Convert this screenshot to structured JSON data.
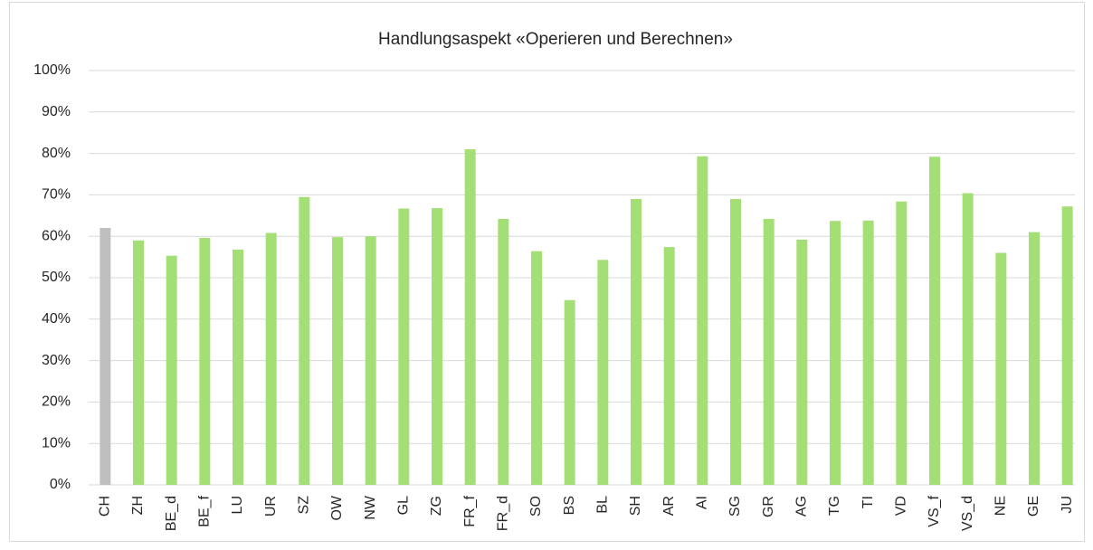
{
  "chart_data": {
    "type": "bar",
    "title": "Handlungsaspekt «Operieren und Berechnen»",
    "categories": [
      "CH",
      "ZH",
      "BE_d",
      "BE_f",
      "LU",
      "UR",
      "SZ",
      "OW",
      "NW",
      "GL",
      "ZG",
      "FR_f",
      "FR_d",
      "SO",
      "BS",
      "BL",
      "SH",
      "AR",
      "AI",
      "SG",
      "GR",
      "AG",
      "TG",
      "TI",
      "VD",
      "VS_f",
      "VS_d",
      "NE",
      "GE",
      "JU"
    ],
    "values": [
      62,
      59,
      55.3,
      59.6,
      56.8,
      60.8,
      69.5,
      59.8,
      60,
      66.7,
      66.8,
      81,
      64.2,
      56.4,
      44.6,
      54.3,
      69,
      57.4,
      79.3,
      69,
      64.2,
      59.2,
      63.7,
      63.8,
      68.4,
      79.2,
      70.4,
      56,
      61,
      67.2
    ],
    "colors": [
      "#bfbfbf",
      "#a3df74",
      "#a3df74",
      "#a3df74",
      "#a3df74",
      "#a3df74",
      "#a3df74",
      "#a3df74",
      "#a3df74",
      "#a3df74",
      "#a3df74",
      "#a3df74",
      "#a3df74",
      "#a3df74",
      "#a3df74",
      "#a3df74",
      "#a3df74",
      "#a3df74",
      "#a3df74",
      "#a3df74",
      "#a3df74",
      "#a3df74",
      "#a3df74",
      "#a3df74",
      "#a3df74",
      "#a3df74",
      "#a3df74",
      "#a3df74",
      "#a3df74",
      "#a3df74"
    ],
    "ylim": [
      0,
      100
    ],
    "yticks": [
      {
        "value": 0,
        "label": "0%"
      },
      {
        "value": 10,
        "label": "10%"
      },
      {
        "value": 20,
        "label": "20%"
      },
      {
        "value": 30,
        "label": "30%"
      },
      {
        "value": 40,
        "label": "40%"
      },
      {
        "value": 50,
        "label": "50%"
      },
      {
        "value": 60,
        "label": "60%"
      },
      {
        "value": 70,
        "label": "70%"
      },
      {
        "value": 80,
        "label": "80%"
      },
      {
        "value": 90,
        "label": "90%"
      },
      {
        "value": 100,
        "label": "100%"
      }
    ],
    "grid": true
  }
}
